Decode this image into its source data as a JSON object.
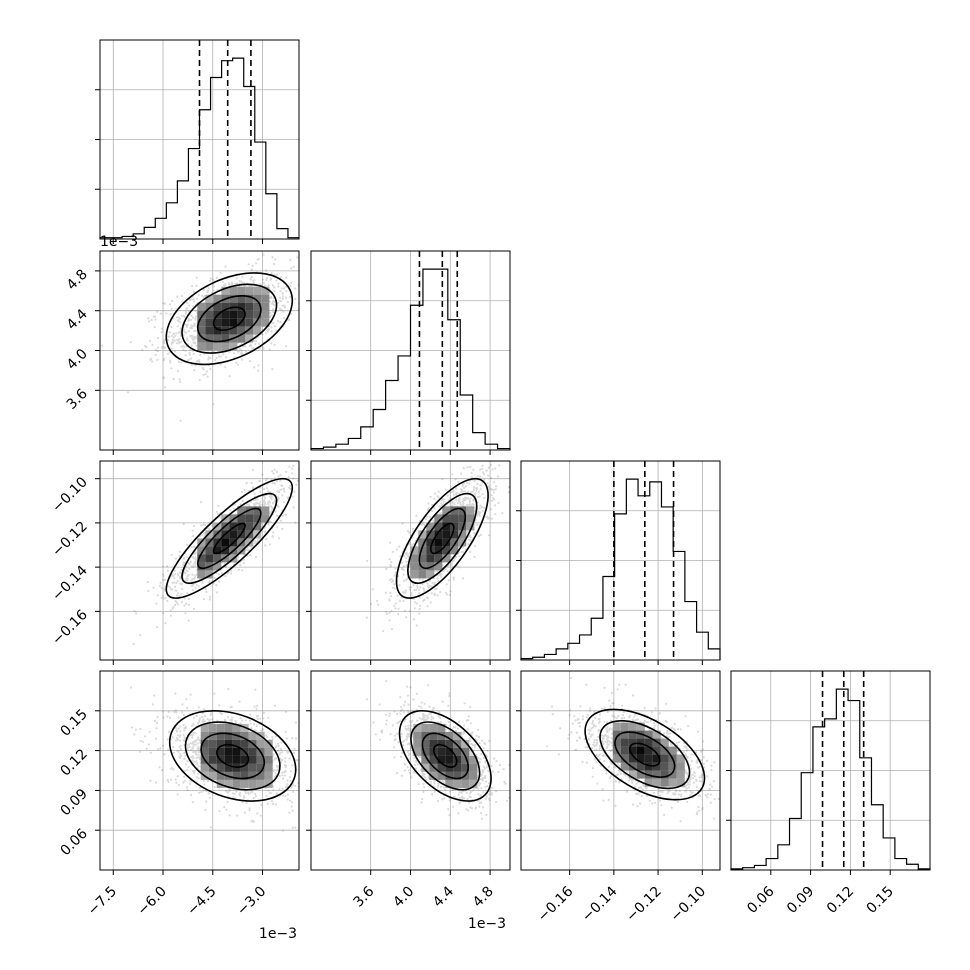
{
  "chart_data": {
    "type": "corner",
    "grid": true,
    "parameters": [
      {
        "range": [
          -7.9,
          -1.9
        ],
        "ticks": [
          -7.5,
          -6.0,
          -4.5,
          -3.0
        ],
        "tick_labels": [
          "−7.5",
          "−6.0",
          "−4.5",
          "−3.0"
        ],
        "offset_text": "1e−3"
      },
      {
        "range": [
          3.0,
          5.0
        ],
        "ticks": [
          3.6,
          4.0,
          4.4,
          4.8
        ],
        "tick_labels": [
          "3.6",
          "4.0",
          "4.4",
          "4.8"
        ],
        "offset_text": "1e−3"
      },
      {
        "range": [
          -0.182,
          -0.092
        ],
        "ticks": [
          -0.16,
          -0.14,
          -0.12,
          -0.1
        ],
        "tick_labels": [
          "−0.16",
          "−0.14",
          "−0.12",
          "−0.10"
        ],
        "offset_text": ""
      },
      {
        "range": [
          0.03,
          0.18
        ],
        "ticks": [
          0.06,
          0.09,
          0.12,
          0.15
        ],
        "tick_labels": [
          "0.06",
          "0.09",
          "0.12",
          "0.15"
        ],
        "offset_text": ""
      }
    ],
    "marginals": [
      {
        "param": 0,
        "quantiles": [
          -4.9,
          -4.05,
          -3.35
        ],
        "counts": [
          1,
          1,
          2,
          4,
          9,
          16,
          28,
          45,
          70,
          100,
          125,
          138,
          140,
          118,
          75,
          35,
          8,
          1
        ]
      },
      {
        "param": 1,
        "quantiles": [
          4.09,
          4.32,
          4.47
        ],
        "counts": [
          1,
          2,
          4,
          8,
          16,
          28,
          48,
          65,
          100,
          125,
          125,
          90,
          38,
          12,
          4,
          1
        ]
      },
      {
        "param": 2,
        "quantiles": [
          -0.14,
          -0.126,
          -0.113
        ],
        "counts": [
          1,
          2,
          4,
          8,
          12,
          18,
          30,
          60,
          105,
          130,
          118,
          128,
          110,
          78,
          42,
          20,
          8
        ]
      },
      {
        "param": 3,
        "quantiles": [
          0.099,
          0.115,
          0.13
        ],
        "counts": [
          1,
          2,
          4,
          10,
          22,
          45,
          85,
          125,
          132,
          158,
          148,
          98,
          57,
          28,
          10,
          5,
          1
        ]
      }
    ],
    "pairs": [
      {
        "x_param": 0,
        "y_param": 1,
        "center": [
          -4.0,
          4.32
        ],
        "sigma": [
          0.95,
          0.23
        ],
        "corr": 0.4
      },
      {
        "x_param": 0,
        "y_param": 2,
        "center": [
          -4.0,
          -0.127
        ],
        "sigma": [
          0.95,
          0.0135
        ],
        "corr": 0.85
      },
      {
        "x_param": 1,
        "y_param": 2,
        "center": [
          4.32,
          -0.127
        ],
        "sigma": [
          0.23,
          0.0135
        ],
        "corr": 0.72
      },
      {
        "x_param": 0,
        "y_param": 3,
        "center": [
          -3.9,
          0.116
        ],
        "sigma": [
          0.95,
          0.017
        ],
        "corr": -0.3
      },
      {
        "x_param": 1,
        "y_param": 3,
        "center": [
          4.35,
          0.116
        ],
        "sigma": [
          0.23,
          0.017
        ],
        "corr": -0.5
      },
      {
        "x_param": 2,
        "y_param": 3,
        "center": [
          -0.126,
          0.117
        ],
        "sigma": [
          0.0135,
          0.017
        ],
        "corr": -0.52
      }
    ]
  }
}
